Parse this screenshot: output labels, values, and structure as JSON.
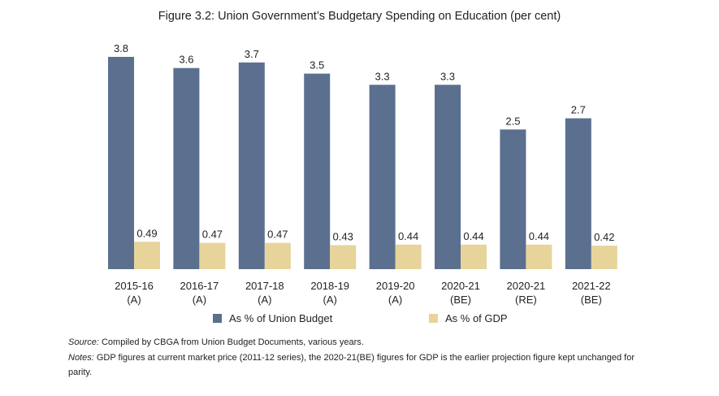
{
  "chart_data": {
    "type": "bar",
    "title": "Figure 3.2: Union Government’s Budgetary Spending on Education (per cent)",
    "categories": [
      [
        "2015-16",
        "(A)"
      ],
      [
        "2016-17",
        "(A)"
      ],
      [
        "2017-18",
        "(A)"
      ],
      [
        "2018-19",
        "(A)"
      ],
      [
        "2019-20",
        "(A)"
      ],
      [
        "2020-21",
        "(BE)"
      ],
      [
        "2020-21",
        "(RE)"
      ],
      [
        "2021-22",
        "(BE)"
      ]
    ],
    "series": [
      {
        "name": "As % of Union Budget",
        "color": "#5b6f8f",
        "values": [
          3.8,
          3.6,
          3.7,
          3.5,
          3.3,
          3.3,
          2.5,
          2.7
        ],
        "labels": [
          "3.8",
          "3.6",
          "3.7",
          "3.5",
          "3.3",
          "3.3",
          "2.5",
          "2.7"
        ]
      },
      {
        "name": "As % of GDP",
        "color": "#e6d49a",
        "values": [
          0.49,
          0.47,
          0.47,
          0.43,
          0.44,
          0.44,
          0.44,
          0.42
        ],
        "labels": [
          "0.49",
          "0.47",
          "0.47",
          "0.43",
          "0.44",
          "0.44",
          "0.44",
          "0.42"
        ]
      }
    ],
    "ylim": [
      0,
      3.8
    ],
    "grid": false,
    "legend": "bottom"
  },
  "notes": {
    "source_label": "Source:",
    "source_text": " Compiled by CBGA from Union Budget Documents, various years.",
    "notes_label": "Notes:",
    "notes_text": " GDP figures at current market price (2011-12 series), the 2020-21(BE) figures for GDP is the earlier projection figure kept unchanged for parity."
  }
}
